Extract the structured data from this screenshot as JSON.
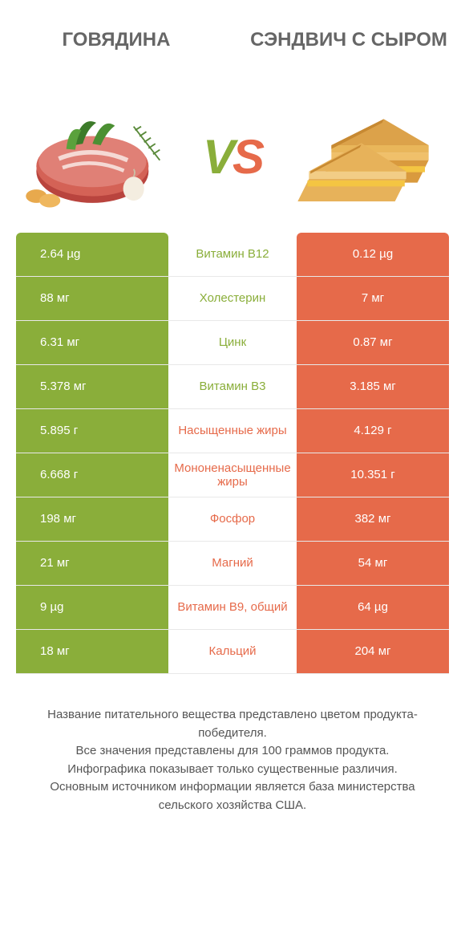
{
  "colors": {
    "green": "#8aae3a",
    "orange": "#e66a4a",
    "green_text": "#8aae3a",
    "orange_text": "#e66a4a"
  },
  "header": {
    "left": "ГОВЯДИНА",
    "right": "СЭНДВИЧ С СЫРОМ"
  },
  "vs": {
    "v": "V",
    "s": "S"
  },
  "rows": [
    {
      "left": "2.64 µg",
      "mid": "Витамин B12",
      "right": "0.12 µg",
      "winner": "left"
    },
    {
      "left": "88 мг",
      "mid": "Холестерин",
      "right": "7 мг",
      "winner": "left"
    },
    {
      "left": "6.31 мг",
      "mid": "Цинк",
      "right": "0.87 мг",
      "winner": "left"
    },
    {
      "left": "5.378 мг",
      "mid": "Витамин B3",
      "right": "3.185 мг",
      "winner": "left"
    },
    {
      "left": "5.895 г",
      "mid": "Насыщенные жиры",
      "right": "4.129 г",
      "winner": "right"
    },
    {
      "left": "6.668 г",
      "mid": "Мононенасыщенные жиры",
      "right": "10.351 г",
      "winner": "right"
    },
    {
      "left": "198 мг",
      "mid": "Фосфор",
      "right": "382 мг",
      "winner": "right"
    },
    {
      "left": "21 мг",
      "mid": "Магний",
      "right": "54 мг",
      "winner": "right"
    },
    {
      "left": "9 µg",
      "mid": "Витамин B9, общий",
      "right": "64 µg",
      "winner": "right"
    },
    {
      "left": "18 мг",
      "mid": "Кальций",
      "right": "204 мг",
      "winner": "right"
    }
  ],
  "footer": {
    "l1": "Название питательного вещества представлено цветом продукта-победителя.",
    "l2": "Все значения представлены для 100 граммов продукта.",
    "l3": "Инфографика показывает только существенные различия.",
    "l4": "Основным источником информации является база министерства сельского хозяйства США."
  }
}
